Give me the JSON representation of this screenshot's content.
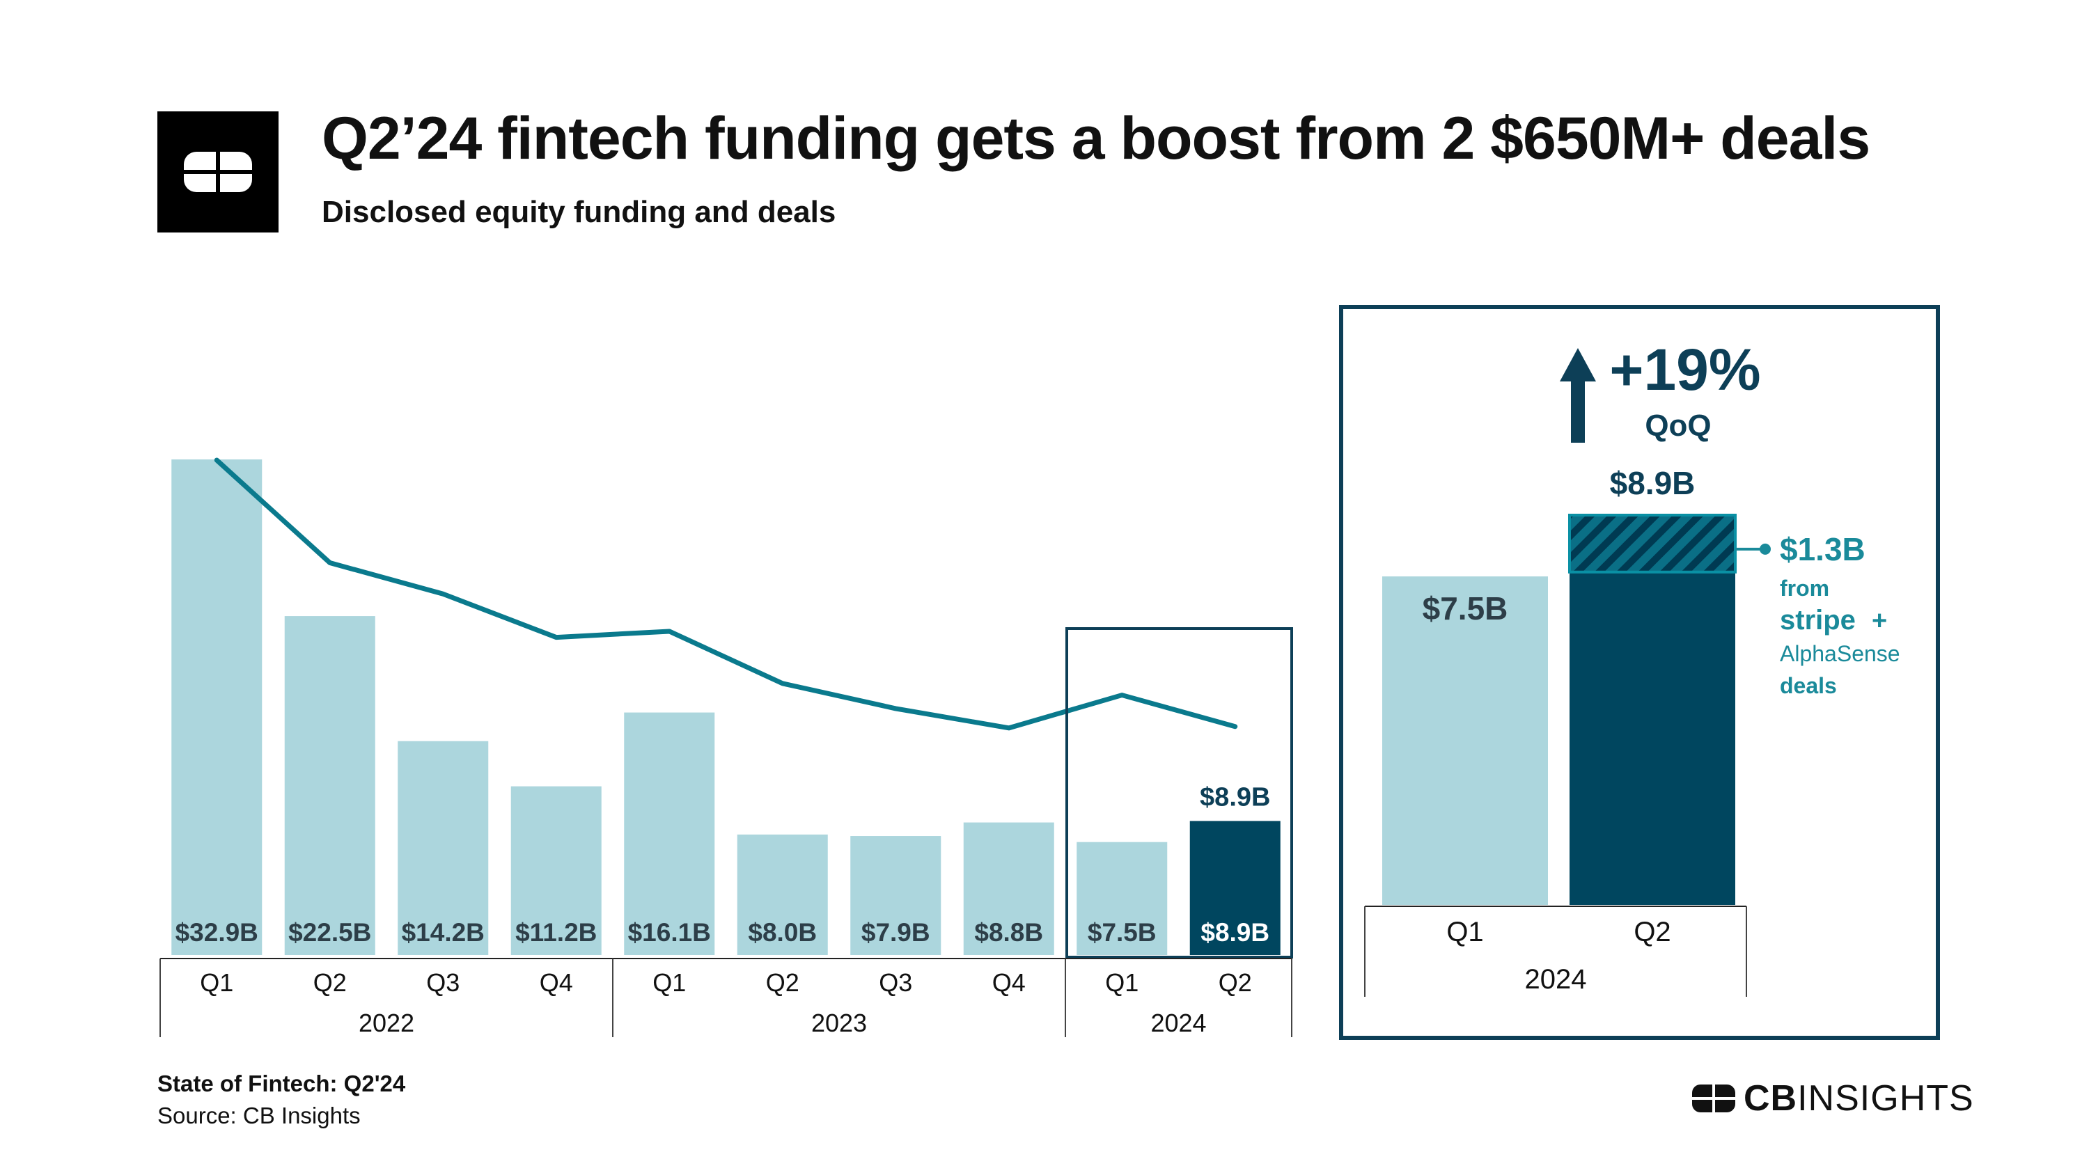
{
  "header": {
    "title": "Q2’24 fintech funding gets a boost from 2 $650M+ deals",
    "subtitle": "Disclosed equity funding and deals"
  },
  "colors": {
    "light_bar": "#acd6dd",
    "dark_bar": "#00465f",
    "line": "#0a7a8d",
    "highlight_box": "#0d3f57",
    "accent_teal": "#1a8a9a"
  },
  "chart_data": [
    {
      "type": "bar",
      "title": "",
      "categories": [
        "Q1",
        "Q2",
        "Q3",
        "Q4",
        "Q1",
        "Q2",
        "Q3",
        "Q4",
        "Q1",
        "Q2"
      ],
      "groups": [
        {
          "label": "2022",
          "count": 4
        },
        {
          "label": "2023",
          "count": 4
        },
        {
          "label": "2024",
          "count": 2
        }
      ],
      "series": [
        {
          "name": "",
          "values": [
            32.9,
            22.5,
            14.2,
            11.2,
            16.1,
            8.0,
            7.9,
            8.8,
            7.5,
            8.9
          ]
        }
      ],
      "value_labels": [
        "$32.9B",
        "$22.5B",
        "$14.2B",
        "$11.2B",
        "$16.1B",
        "$8.0B",
        "$7.9B",
        "$8.8B",
        "$7.5B",
        "$8.9B"
      ],
      "highlight_label": "$8.9B",
      "line": {
        "values": [
          1493,
          1150,
          1046,
          901,
          921,
          747,
          663,
          598,
          708,
          603
        ]
      },
      "ylim": [
        0,
        35
      ]
    },
    {
      "type": "bar",
      "title": "",
      "categories": [
        "Q1",
        "Q2"
      ],
      "group_label": "2024",
      "values": [
        7.5,
        8.9
      ],
      "value_labels": [
        "$7.5B",
        "$8.9B"
      ],
      "stacked_segment": {
        "value": 1.3,
        "label": "$1.3B",
        "note": [
          "from",
          "stripe",
          "+",
          "AlphaSense",
          "deals"
        ]
      },
      "change": {
        "value": "+19%",
        "label": "QoQ"
      }
    }
  ],
  "footer": {
    "report": "State of Fintech: Q2'24",
    "source": "Source: CB Insights",
    "brand_bold": "CB",
    "brand_light": "INSIGHTS"
  }
}
